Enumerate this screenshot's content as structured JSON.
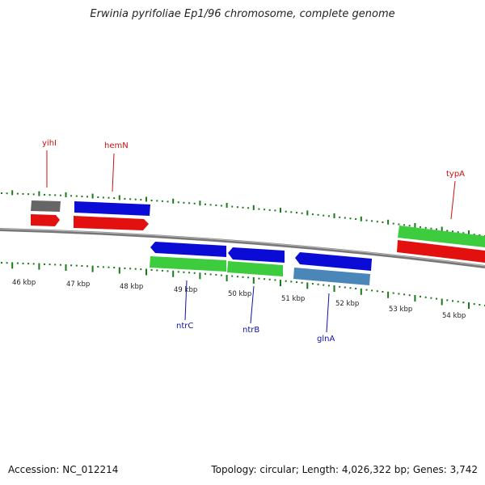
{
  "title": "Erwinia pyrifoliae Ep1/96 chromosome, complete genome",
  "footer": {
    "accession": "Accession: NC_012214",
    "summary": "Topology: circular; Length: 4,026,322 bp; Genes: 3,742"
  },
  "colors": {
    "backbone": "#888888",
    "tick": "#1a7a1a",
    "gene_blue": "#0b0bd6",
    "gene_red": "#e31010",
    "gene_green": "#3dcc3d",
    "gene_gray": "#666666",
    "gene_steel": "#4a86b8",
    "label_red": "#cc1010",
    "label_blue": "#1010aa"
  },
  "scale": {
    "unit": "kbp",
    "labels": [
      "46 kbp",
      "47 kbp",
      "48 kbp",
      "49 kbp",
      "50 kbp",
      "51 kbp",
      "52 kbp",
      "53 kbp",
      "54 kbp"
    ],
    "first_kbp": 46,
    "last_kbp": 54
  },
  "gene_labels": [
    {
      "name": "yihI",
      "side": "top",
      "color": "red"
    },
    {
      "name": "hemN",
      "side": "top",
      "color": "red"
    },
    {
      "name": "typA",
      "side": "top",
      "color": "red"
    },
    {
      "name": "ntrC",
      "side": "bottom",
      "color": "blue"
    },
    {
      "name": "ntrB",
      "side": "bottom",
      "color": "blue"
    },
    {
      "name": "glnA",
      "side": "bottom",
      "color": "blue"
    }
  ]
}
